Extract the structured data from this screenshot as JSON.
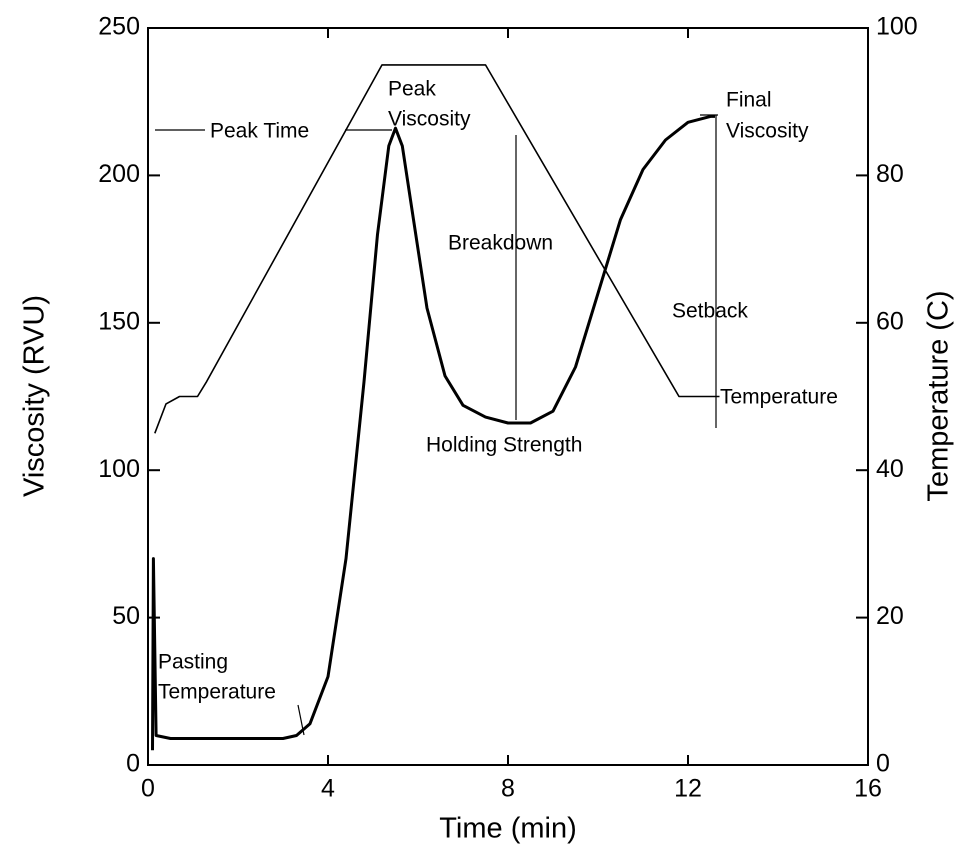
{
  "chart_data": {
    "type": "line",
    "xlabel": "Time (min)",
    "ylabel": "Viscosity (RVU)",
    "y2label": "Temperature (C)",
    "xlim": [
      0,
      16
    ],
    "xticks": [
      0,
      4,
      8,
      12,
      16
    ],
    "ylim": [
      0,
      250
    ],
    "yticks": [
      0,
      50,
      100,
      150,
      200,
      250
    ],
    "y2lim": [
      0,
      100
    ],
    "y2ticks": [
      0,
      20,
      40,
      60,
      80,
      100
    ],
    "series": [
      {
        "color": "#000000",
        "x": [
          0.1,
          0.12,
          0.18,
          0.5,
          1,
          2,
          3,
          3.3,
          3.6,
          4.0,
          4.4,
          4.8,
          5.1,
          5.35,
          5.5,
          5.65,
          5.9,
          6.2,
          6.6,
          7.0,
          7.5,
          8.0,
          8.5,
          9.0,
          9.5,
          10.0,
          10.5,
          11.0,
          11.5,
          12.0,
          12.5,
          12.6
        ],
        "values": [
          5,
          70,
          10,
          9,
          9,
          9,
          9,
          10,
          14,
          30,
          70,
          130,
          180,
          210,
          216,
          210,
          185,
          155,
          132,
          122,
          118,
          116,
          116,
          120,
          135,
          160,
          185,
          202,
          212,
          218,
          220,
          220
        ]
      },
      {
        "color": "#000000",
        "axis": "y2",
        "x": [
          0.15,
          0.4,
          0.7,
          1.1,
          1.3,
          5.2,
          7.5,
          11.8,
          12.7
        ],
        "values": [
          45,
          49,
          50,
          50,
          52,
          95,
          95,
          50,
          50
        ]
      }
    ],
    "annotations": [
      {
        "lines": [
          "Peak",
          "Viscosity"
        ]
      },
      {
        "lines": [
          "Peak Time"
        ]
      },
      {
        "lines": [
          "Final",
          "Viscosity"
        ]
      },
      {
        "lines": [
          "Breakdown"
        ]
      },
      {
        "lines": [
          "Setback"
        ]
      },
      {
        "lines": [
          "Temperature"
        ]
      },
      {
        "lines": [
          "Holding Strength"
        ]
      },
      {
        "lines": [
          "Pasting",
          "Temperature"
        ]
      }
    ]
  }
}
